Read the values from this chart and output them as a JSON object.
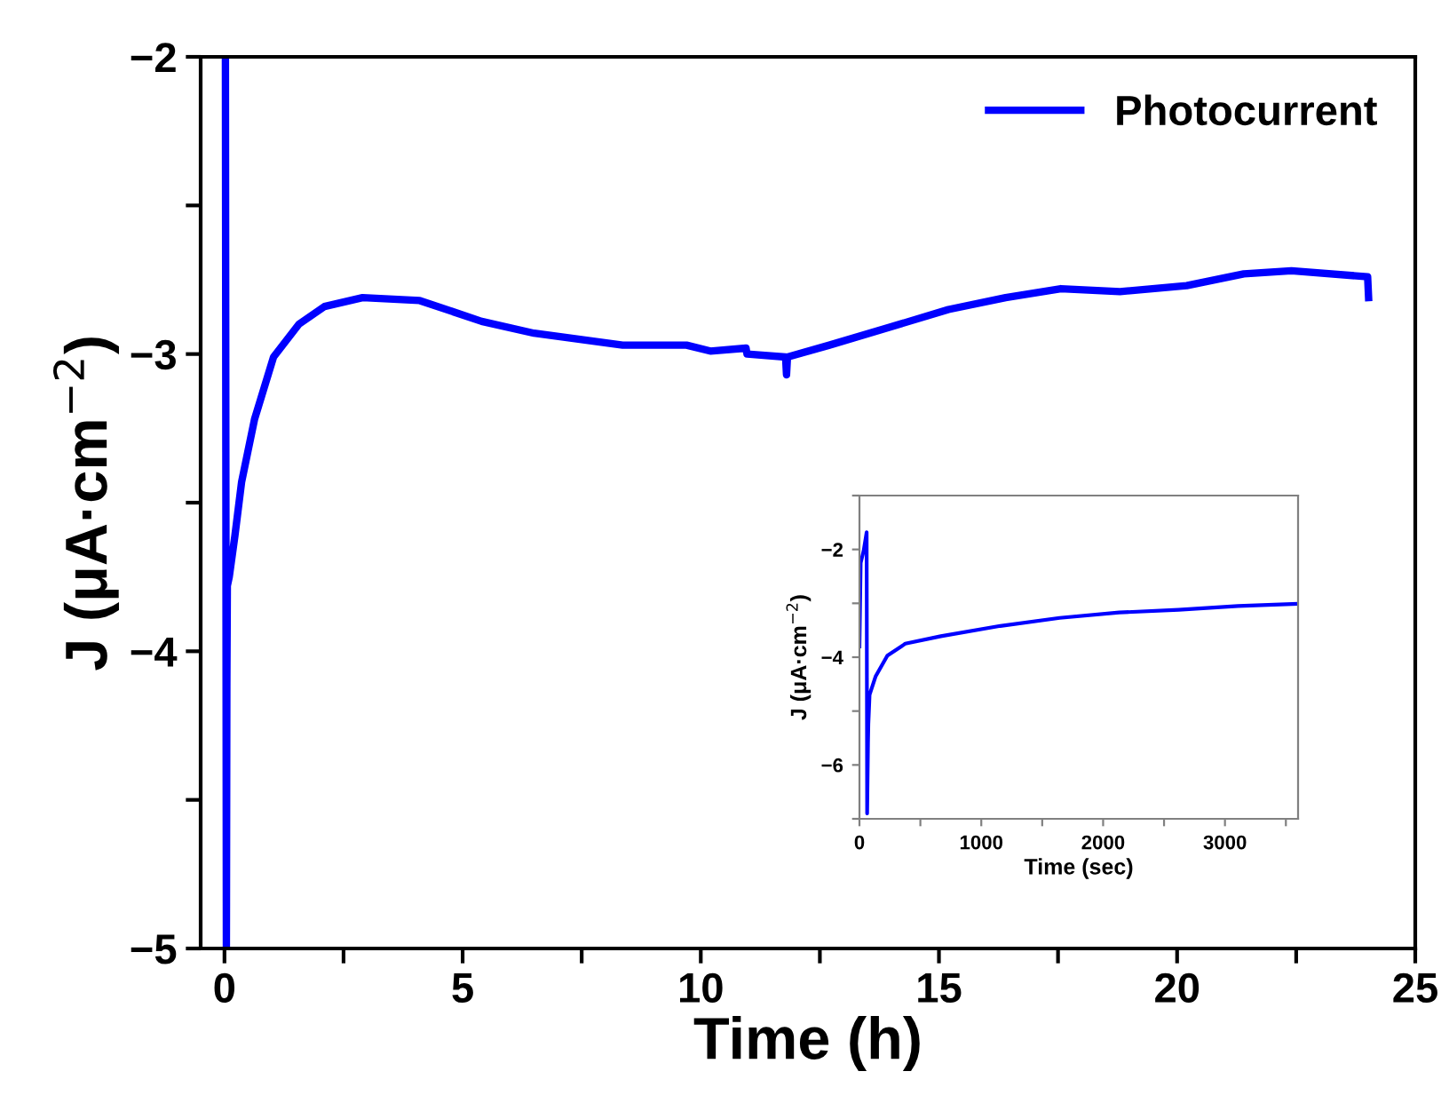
{
  "chart_data": [
    {
      "type": "line",
      "xlabel": "Time (h)",
      "ylabel": "J (μA·cm$^{−2}$)",
      "xlim": [
        -0.5,
        25
      ],
      "ylim": [
        -5,
        -2
      ],
      "xticks": [
        0,
        {
          "value": 2.5,
          "label": null
        },
        5,
        {
          "value": 7.5,
          "label": null
        },
        10,
        {
          "value": 12.5,
          "label": null
        },
        15,
        {
          "value": 17.5,
          "label": null
        },
        20,
        {
          "value": 22.5,
          "label": null
        },
        25
      ],
      "yticks": [
        -5,
        {
          "value": -4.5,
          "label": null
        },
        -4,
        {
          "value": -3.5,
          "label": null
        },
        -3,
        {
          "value": -2.5,
          "label": null
        },
        -2
      ],
      "legend": "top right",
      "grid": false,
      "series": [
        {
          "name": "Photocurrent",
          "color": "#0000ff",
          "x": [
            0.02,
            0.04,
            0.05,
            0.06,
            0.1,
            0.22,
            0.36,
            0.63,
            1.03,
            1.56,
            2.1,
            2.9,
            4.1,
            5.4,
            6.5,
            8.36,
            9.7,
            10.2,
            10.95,
            10.97,
            11.78,
            11.8,
            11.82,
            12.7,
            13.96,
            15.2,
            16.4,
            17.56,
            18.8,
            20.2,
            21.4,
            22.4,
            24.0,
            24.02
          ],
          "values": [
            -2,
            -5,
            -4.12,
            -3.78,
            -3.75,
            -3.61,
            -3.43,
            -3.22,
            -3.01,
            -2.9,
            -2.84,
            -2.81,
            -2.82,
            -2.89,
            -2.93,
            -2.97,
            -2.97,
            -2.99,
            -2.98,
            -3.0,
            -3.01,
            -3.07,
            -3.01,
            -2.97,
            -2.91,
            -2.85,
            -2.81,
            -2.78,
            -2.79,
            -2.77,
            -2.73,
            -2.72,
            -2.74,
            -2.81
          ]
        }
      ]
    },
    {
      "type": "line",
      "xlabel": "Time (sec)",
      "ylabel": "J (μA·cm$^{−2}$)",
      "xlim": [
        0,
        3600
      ],
      "ylim": [
        -7,
        -1
      ],
      "xticks": [
        0,
        {
          "value": 500,
          "label": null
        },
        1000,
        {
          "value": 1500,
          "label": null
        },
        2000,
        {
          "value": 2500,
          "label": null
        },
        3000,
        {
          "value": 3500,
          "label": null
        }
      ],
      "yticks": [
        {
          "value": -7,
          "label": null
        },
        -6,
        {
          "value": -5,
          "label": null
        },
        -4,
        {
          "value": -3,
          "label": null
        },
        -2,
        {
          "value": -1,
          "label": null
        }
      ],
      "legend": false,
      "grid": false,
      "series": [
        {
          "color": "#0000ff",
          "x": [
            0,
            10,
            34,
            59,
            63,
            70,
            73,
            83,
            132,
            229,
            376,
            668,
            1156,
            1644,
            2132,
            2620,
            3107,
            3600
          ],
          "values": [
            -3.8,
            -2.25,
            -2.03,
            -1.68,
            -6.9,
            -5.6,
            -5.24,
            -4.7,
            -4.36,
            -3.97,
            -3.75,
            -3.61,
            -3.42,
            -3.27,
            -3.17,
            -3.12,
            -3.05,
            -3.01
          ]
        }
      ]
    }
  ]
}
